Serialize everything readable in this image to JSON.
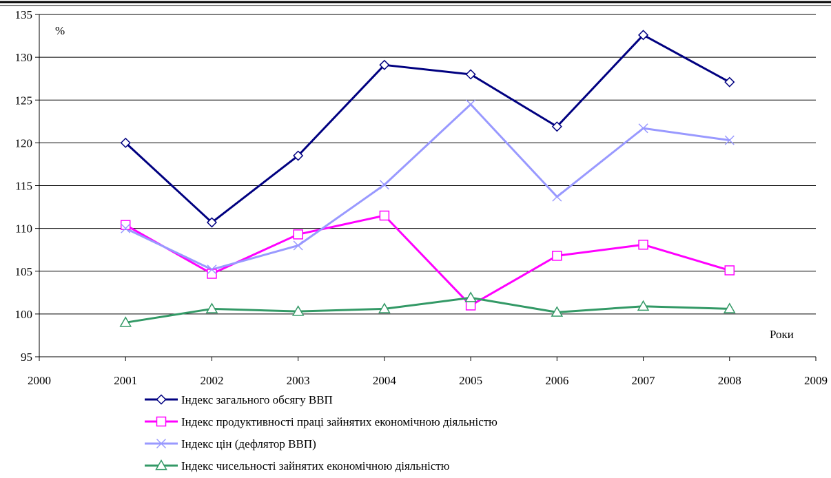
{
  "chart_data": {
    "type": "line",
    "ylabel": "%",
    "xlabel": "Роки",
    "xlim": [
      2000,
      2009
    ],
    "ylim": [
      95,
      135
    ],
    "x_ticks": [
      "2000",
      "2001",
      "2002",
      "2003",
      "2004",
      "2005",
      "2006",
      "2007",
      "2008",
      "2009"
    ],
    "y_ticks": [
      "95",
      "100",
      "105",
      "110",
      "115",
      "120",
      "125",
      "130",
      "135"
    ],
    "grid": "horizontal",
    "legend_position": "bottom",
    "x": [
      2001,
      2002,
      2003,
      2004,
      2005,
      2006,
      2007,
      2008
    ],
    "series": [
      {
        "name": "Індекс загального обсягу ВВП",
        "color": "#000080",
        "marker": "diamond",
        "values": [
          120.0,
          110.7,
          118.5,
          129.1,
          128.0,
          121.9,
          132.6,
          127.1
        ]
      },
      {
        "name": "Індекс продуктивності праці зайнятих економічною діяльністю",
        "color": "#FF00FF",
        "marker": "square",
        "values": [
          110.4,
          104.7,
          109.3,
          111.5,
          101.0,
          106.8,
          108.1,
          105.1
        ]
      },
      {
        "name": "Індекс цін (дефлятор ВВП)",
        "color": "#9999FF",
        "marker": "x",
        "values": [
          110.0,
          105.2,
          108.0,
          115.1,
          124.5,
          113.7,
          121.7,
          120.3
        ]
      },
      {
        "name": "Індекс чисельності зайнятих економічною діяльністю",
        "color": "#339966",
        "marker": "triangle",
        "values": [
          99.0,
          100.6,
          100.3,
          100.6,
          101.9,
          100.2,
          100.9,
          100.6
        ]
      }
    ]
  }
}
